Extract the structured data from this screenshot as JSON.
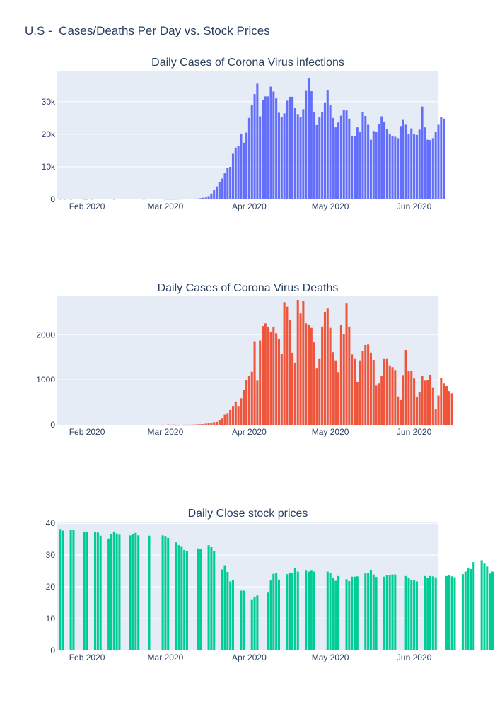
{
  "title": "U.S -  Cases/Deaths Per Day vs. Stock Prices",
  "x_tick_labels": [
    "Feb 2020",
    "Mar 2020",
    "Apr 2020",
    "May 2020",
    "Jun 2020"
  ],
  "colors": {
    "cases": "#636efa",
    "deaths": "#ef553b",
    "stock": "#00cc96",
    "plot_bg": "#e5ecf6",
    "text": "#2a3f5f"
  },
  "chart_data": [
    {
      "type": "bar",
      "title": "Daily Cases of Corona Virus infections",
      "x_start": "2020-01-22",
      "x_range": [
        "2020-01-21",
        "2020-06-10"
      ],
      "ylim": [
        0,
        39500
      ],
      "y_tick_values": [
        0,
        10000,
        20000,
        30000
      ],
      "y_tick_labels": [
        "0",
        "10k",
        "20k",
        "30k"
      ],
      "grid": true,
      "values": [
        1,
        0,
        1,
        0,
        3,
        0,
        0,
        0,
        0,
        2,
        1,
        0,
        3,
        0,
        0,
        0,
        0,
        0,
        0,
        0,
        1,
        0,
        0,
        0,
        0,
        0,
        0,
        0,
        0,
        0,
        0,
        20,
        0,
        0,
        0,
        0,
        0,
        0,
        0,
        6,
        3,
        7,
        18,
        15,
        30,
        50,
        60,
        70,
        110,
        140,
        170,
        250,
        350,
        500,
        600,
        1000,
        1800,
        2800,
        4000,
        5400,
        6400,
        8000,
        9700,
        10000,
        14000,
        15900,
        16500,
        20000,
        17400,
        20500,
        25000,
        29000,
        32300,
        35500,
        25500,
        30600,
        31600,
        31600,
        34600,
        33100,
        31000,
        26600,
        25200,
        26400,
        30300,
        31500,
        31500,
        28000,
        26200,
        25300,
        27700,
        33300,
        37300,
        33200,
        26800,
        22800,
        25200,
        26800,
        29800,
        33600,
        29000,
        25000,
        22100,
        23600,
        25700,
        27400,
        27300,
        24800,
        19500,
        19400,
        22100,
        20600,
        26700,
        25600,
        22900,
        18300,
        21000,
        20800,
        23200,
        25500,
        23900,
        21600,
        20200,
        19400,
        19200,
        18800,
        22500,
        24400,
        22900,
        20000,
        21800,
        20100,
        19800,
        21400,
        28500,
        22100,
        18300,
        18200,
        18800,
        20600,
        22900,
        25300,
        24800
      ]
    },
    {
      "type": "bar",
      "title": "Daily Cases of Corona Virus Deaths",
      "x_start": "2020-01-22",
      "x_range": [
        "2020-01-21",
        "2020-06-10"
      ],
      "ylim": [
        0,
        2850
      ],
      "y_tick_values": [
        0,
        1000,
        2000
      ],
      "y_tick_labels": [
        "0",
        "1000",
        "2000"
      ],
      "grid": true,
      "values": [
        0,
        0,
        0,
        0,
        0,
        0,
        0,
        0,
        0,
        0,
        0,
        0,
        0,
        0,
        0,
        0,
        0,
        0,
        0,
        0,
        0,
        0,
        0,
        0,
        0,
        0,
        0,
        0,
        0,
        0,
        0,
        0,
        0,
        0,
        0,
        0,
        0,
        0,
        1,
        0,
        5,
        1,
        4,
        1,
        1,
        0,
        2,
        1,
        2,
        4,
        6,
        10,
        10,
        14,
        25,
        35,
        45,
        58,
        65,
        110,
        155,
        225,
        260,
        330,
        420,
        520,
        420,
        590,
        770,
        990,
        1080,
        1180,
        1840,
        980,
        1870,
        2190,
        2250,
        2170,
        2050,
        2170,
        2030,
        1910,
        1580,
        2720,
        2620,
        2320,
        1600,
        1380,
        2760,
        2470,
        2740,
        2250,
        2210,
        2150,
        1830,
        1250,
        1460,
        2180,
        2500,
        2580,
        2150,
        1610,
        1430,
        1170,
        2220,
        2010,
        2690,
        2180,
        1560,
        1460,
        950,
        1430,
        1630,
        1770,
        1780,
        1600,
        1440,
        870,
        920,
        1080,
        1460,
        1460,
        1320,
        1280,
        1200,
        630,
        550,
        1090,
        1660,
        1190,
        1190,
        1030,
        610,
        720,
        1080,
        980,
        1000,
        1100,
        820,
        350,
        650,
        1050,
        920,
        860,
        750,
        700
      ]
    },
    {
      "type": "bar",
      "title": "Daily Close stock prices",
      "x_start": "2020-01-22",
      "x_range": [
        "2020-01-21",
        "2020-06-10"
      ],
      "ylim": [
        0,
        40.5
      ],
      "y_tick_values": [
        0,
        10,
        20,
        30,
        40
      ],
      "y_tick_labels": [
        "0",
        "10",
        "20",
        "30",
        "40"
      ],
      "grid": true,
      "values": [
        38.2,
        37.7,
        null,
        null,
        37.9,
        37.9,
        null,
        null,
        null,
        37.4,
        37.3,
        null,
        null,
        37.2,
        37.1,
        36.1,
        null,
        null,
        35.2,
        36.5,
        37.4,
        36.8,
        36.4,
        null,
        null,
        null,
        36.2,
        36.6,
        37.0,
        36.2,
        null,
        null,
        null,
        36.1,
        null,
        null,
        null,
        null,
        36.2,
        36.0,
        35.4,
        null,
        null,
        34.0,
        33.1,
        32.8,
        31.6,
        31.2,
        null,
        null,
        null,
        32.1,
        32.0,
        null,
        null,
        33.1,
        32.6,
        31.2,
        null,
        null,
        25.5,
        26.8,
        24.7,
        21.7,
        22.1,
        null,
        null,
        18.8,
        18.8,
        null,
        null,
        16.1,
        16.8,
        17.3,
        null,
        null,
        null,
        18.2,
        22.0,
        24.1,
        24.3,
        22.3,
        null,
        null,
        24.0,
        24.5,
        24.3,
        26.0,
        24.8,
        null,
        null,
        25.3,
        24.8,
        25.3,
        24.8,
        null,
        null,
        null,
        null,
        24.8,
        24.4,
        22.9,
        21.9,
        23.4,
        null,
        null,
        22.4,
        21.8,
        23.2,
        23.2,
        23.3,
        null,
        null,
        24.2,
        24.4,
        25.4,
        23.9,
        23.1,
        null,
        null,
        23.2,
        23.6,
        23.7,
        23.9,
        23.9,
        null,
        null,
        null,
        23.4,
        22.8,
        22.2,
        22.0,
        21.7,
        null,
        null,
        23.4,
        22.9,
        23.4,
        23.3,
        23.0,
        null,
        null,
        null,
        23.4,
        23.7,
        23.3,
        23.0,
        null,
        null,
        24.0,
        24.8,
        25.8,
        25.6,
        27.8,
        null,
        null,
        28.4,
        27.3,
        26.4,
        24.2,
        24.8
      ]
    }
  ]
}
